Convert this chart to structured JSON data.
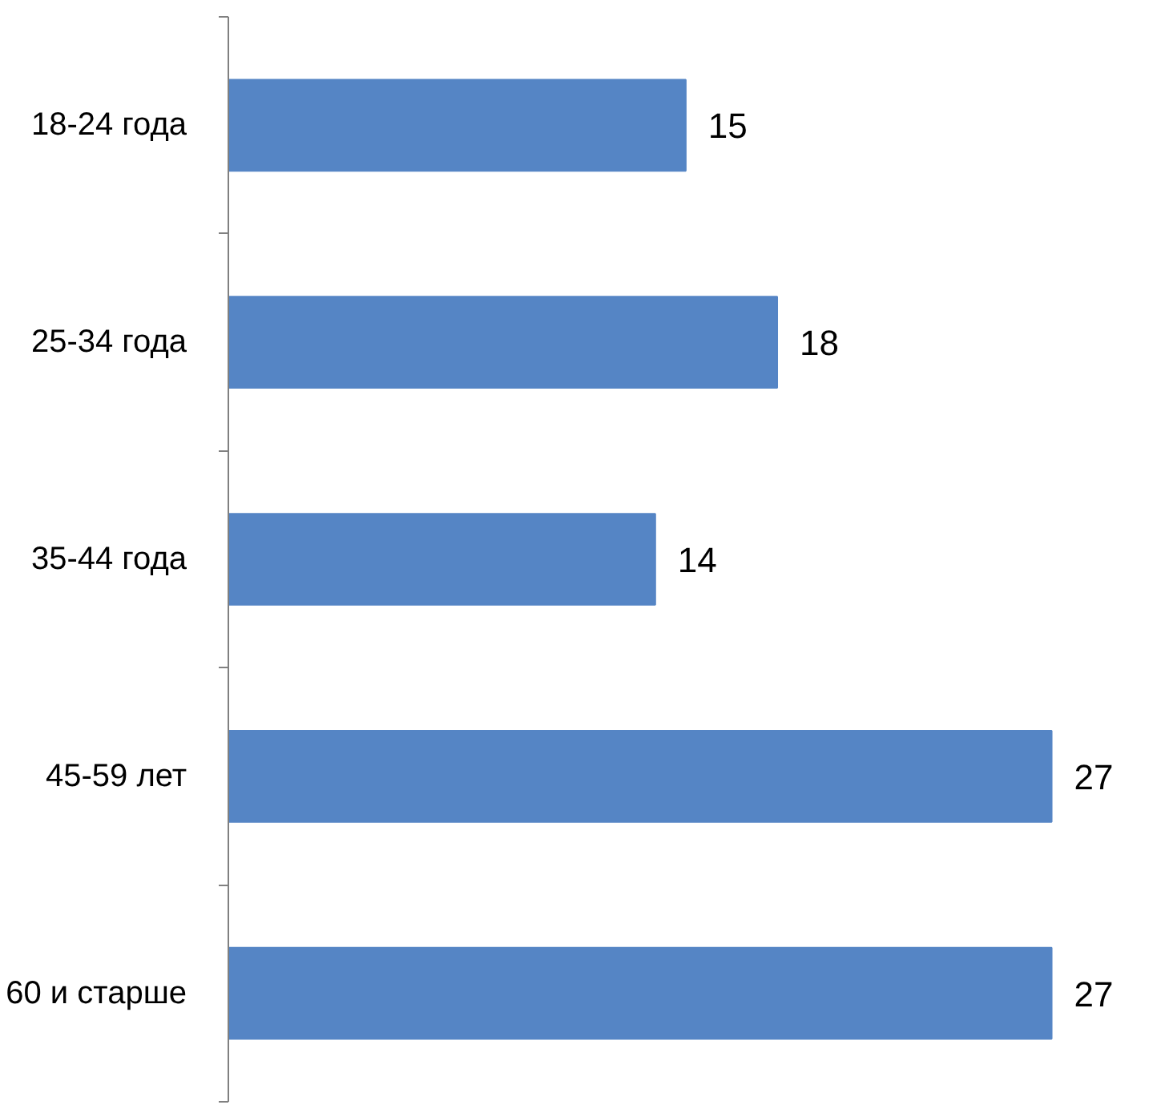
{
  "chart_data": {
    "type": "bar",
    "orientation": "horizontal",
    "categories": [
      "18-24 года",
      "25-34 года",
      "35-44 года",
      "45-59 лет",
      "60 и старше"
    ],
    "values": [
      15,
      18,
      14,
      27,
      27
    ],
    "color": "#5585c5",
    "data_labels": true
  }
}
